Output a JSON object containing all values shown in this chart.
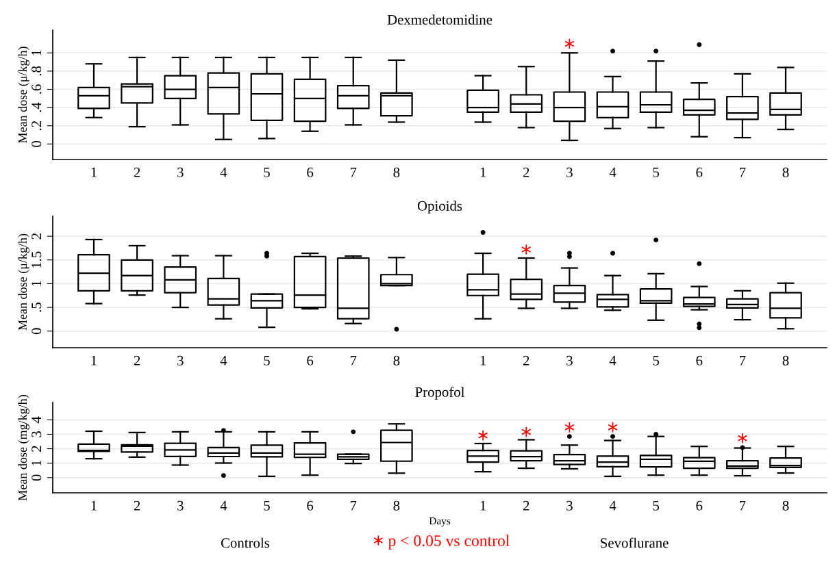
{
  "chart_data": [
    {
      "type": "box",
      "title": "Dexmedetomidine",
      "ylabel": "Mean dose (μ/kg/h)",
      "categories": [
        "1",
        "2",
        "3",
        "4",
        "5",
        "6",
        "7",
        "8",
        null,
        "1",
        "2",
        "3",
        "4",
        "5",
        "6",
        "7",
        "8"
      ],
      "boxes": [
        {
          "low": 0.29,
          "q1": 0.39,
          "median": 0.53,
          "q3": 0.62,
          "high": 0.88
        },
        {
          "low": 0.19,
          "q1": 0.45,
          "median": 0.63,
          "q3": 0.66,
          "high": 0.95
        },
        {
          "low": 0.21,
          "q1": 0.5,
          "median": 0.6,
          "q3": 0.75,
          "high": 0.95
        },
        {
          "low": 0.05,
          "q1": 0.33,
          "median": 0.62,
          "q3": 0.78,
          "high": 0.95
        },
        {
          "low": 0.06,
          "q1": 0.26,
          "median": 0.55,
          "q3": 0.77,
          "high": 0.95
        },
        {
          "low": 0.14,
          "q1": 0.25,
          "median": 0.5,
          "q3": 0.71,
          "high": 0.95
        },
        {
          "low": 0.21,
          "q1": 0.39,
          "median": 0.53,
          "q3": 0.64,
          "high": 0.95
        },
        {
          "low": 0.24,
          "q1": 0.31,
          "median": 0.53,
          "q3": 0.56,
          "high": 0.92
        },
        null,
        {
          "low": 0.24,
          "q1": 0.35,
          "median": 0.4,
          "q3": 0.59,
          "high": 0.75
        },
        {
          "low": 0.18,
          "q1": 0.35,
          "median": 0.44,
          "q3": 0.54,
          "high": 0.85
        },
        {
          "low": 0.04,
          "q1": 0.25,
          "median": 0.4,
          "q3": 0.57,
          "high": 1.0
        },
        {
          "low": 0.17,
          "q1": 0.29,
          "median": 0.41,
          "q3": 0.57,
          "high": 0.74,
          "outliers": [
            1.02
          ]
        },
        {
          "low": 0.18,
          "q1": 0.35,
          "median": 0.43,
          "q3": 0.57,
          "high": 0.91,
          "outliers": [
            1.02
          ]
        },
        {
          "low": 0.08,
          "q1": 0.32,
          "median": 0.37,
          "q3": 0.49,
          "high": 0.67,
          "outliers": [
            1.09
          ]
        },
        {
          "low": 0.07,
          "q1": 0.27,
          "median": 0.34,
          "q3": 0.52,
          "high": 0.77
        },
        {
          "low": 0.16,
          "q1": 0.32,
          "median": 0.38,
          "q3": 0.56,
          "high": 0.84
        }
      ],
      "series": [
        {
          "type": "scatter",
          "color": "#ff0000",
          "marker": "cross",
          "values": [
            null,
            null,
            null,
            null,
            null,
            null,
            null,
            null,
            null,
            null,
            null,
            1.1,
            null,
            null,
            null,
            null,
            null
          ]
        }
      ],
      "ylim": [
        -0.17,
        1.25
      ],
      "yticks": [
        0,
        {
          "value": 0.2,
          "label": ".2"
        },
        {
          "value": 0.4,
          "label": ".4"
        },
        {
          "value": 0.6,
          "label": ".6"
        },
        {
          "value": 0.8,
          "label": ".8"
        },
        1
      ],
      "grid": "y"
    },
    {
      "type": "box",
      "title": "Opioids",
      "ylabel": "Mean dose (μ/kg/h)",
      "categories": [
        "1",
        "2",
        "3",
        "4",
        "5",
        "6",
        "7",
        "8",
        null,
        "1",
        "2",
        "3",
        "4",
        "5",
        "6",
        "7",
        "8"
      ],
      "boxes": [
        {
          "low": 0.58,
          "q1": 0.85,
          "median": 1.22,
          "q3": 1.61,
          "high": 1.93
        },
        {
          "low": 0.76,
          "q1": 0.85,
          "median": 1.17,
          "q3": 1.5,
          "high": 1.8
        },
        {
          "low": 0.5,
          "q1": 0.81,
          "median": 1.08,
          "q3": 1.35,
          "high": 1.59
        },
        {
          "low": 0.26,
          "q1": 0.55,
          "median": 0.68,
          "q3": 1.11,
          "high": 1.59
        },
        {
          "low": 0.08,
          "q1": 0.49,
          "median": 0.64,
          "q3": 0.78,
          "high": 0.78,
          "outliers": [
            1.58,
            1.64
          ]
        },
        {
          "low": 0.47,
          "q1": 0.5,
          "median": 0.76,
          "q3": 1.57,
          "high": 1.64
        },
        {
          "low": 0.16,
          "q1": 0.26,
          "median": 0.48,
          "q3": 1.54,
          "high": 1.58
        },
        {
          "low": 0.96,
          "q1": 0.96,
          "median": 1.0,
          "q3": 1.19,
          "high": 1.55,
          "outliers": [
            0.04
          ]
        },
        null,
        {
          "low": 0.26,
          "q1": 0.75,
          "median": 0.87,
          "q3": 1.2,
          "high": 1.64,
          "outliers": [
            2.08
          ]
        },
        {
          "low": 0.48,
          "q1": 0.67,
          "median": 0.78,
          "q3": 1.09,
          "high": 1.54
        },
        {
          "low": 0.48,
          "q1": 0.61,
          "median": 0.8,
          "q3": 0.96,
          "high": 1.33,
          "outliers": [
            1.57,
            1.64
          ]
        },
        {
          "low": 0.44,
          "q1": 0.51,
          "median": 0.67,
          "q3": 0.77,
          "high": 1.17,
          "outliers": [
            1.64
          ]
        },
        {
          "low": 0.23,
          "q1": 0.59,
          "median": 0.64,
          "q3": 0.89,
          "high": 1.21,
          "outliers": [
            1.92
          ]
        },
        {
          "low": 0.45,
          "q1": 0.52,
          "median": 0.57,
          "q3": 0.71,
          "high": 0.94,
          "outliers": [
            1.42,
            0.15,
            0.07
          ]
        },
        {
          "low": 0.24,
          "q1": 0.49,
          "median": 0.56,
          "q3": 0.68,
          "high": 0.85
        },
        {
          "low": 0.05,
          "q1": 0.28,
          "median": 0.48,
          "q3": 0.81,
          "high": 1.01
        }
      ],
      "series": [
        {
          "type": "scatter",
          "color": "#ff0000",
          "marker": "cross",
          "values": [
            null,
            null,
            null,
            null,
            null,
            null,
            null,
            null,
            null,
            null,
            1.72,
            null,
            null,
            null,
            null,
            null,
            null
          ]
        }
      ],
      "ylim": [
        -0.35,
        2.42
      ],
      "yticks": [
        0,
        {
          "value": 0.5,
          "label": ".5"
        },
        1,
        1.5,
        2
      ],
      "grid": "y"
    },
    {
      "type": "box",
      "title": "Propofol",
      "ylabel": "Mean dose (mg/kg/h)",
      "xlabel": "Days",
      "categories": [
        "1",
        "2",
        "3",
        "4",
        "5",
        "6",
        "7",
        "8",
        null,
        "1",
        "2",
        "3",
        "4",
        "5",
        "6",
        "7",
        "8"
      ],
      "boxes": [
        {
          "low": 1.31,
          "q1": 1.82,
          "median": 1.88,
          "q3": 2.32,
          "high": 3.21
        },
        {
          "low": 1.42,
          "q1": 1.77,
          "median": 2.18,
          "q3": 2.27,
          "high": 3.12
        },
        {
          "low": 0.87,
          "q1": 1.47,
          "median": 1.92,
          "q3": 2.38,
          "high": 3.17
        },
        {
          "low": 1.01,
          "q1": 1.46,
          "median": 1.7,
          "q3": 2.08,
          "high": 3.17,
          "outliers": [
            3.26,
            0.15
          ]
        },
        {
          "low": 0.09,
          "q1": 1.44,
          "median": 1.7,
          "q3": 2.25,
          "high": 3.17
        },
        {
          "low": 0.17,
          "q1": 1.4,
          "median": 1.62,
          "q3": 2.4,
          "high": 3.17
        },
        {
          "low": 0.98,
          "q1": 1.27,
          "median": 1.44,
          "q3": 1.62,
          "high": 1.62,
          "outliers": [
            3.17
          ]
        },
        {
          "low": 0.31,
          "q1": 1.14,
          "median": 2.43,
          "q3": 3.28,
          "high": 3.72
        },
        null,
        {
          "low": 0.41,
          "q1": 1.08,
          "median": 1.49,
          "q3": 1.88,
          "high": 2.36
        },
        {
          "low": 0.65,
          "q1": 1.17,
          "median": 1.45,
          "q3": 1.86,
          "high": 2.62
        },
        {
          "low": 0.61,
          "q1": 0.91,
          "median": 1.17,
          "q3": 1.6,
          "high": 2.25,
          "outliers": [
            2.85
          ]
        },
        {
          "low": 0.09,
          "q1": 0.76,
          "median": 1.08,
          "q3": 1.49,
          "high": 2.57,
          "outliers": [
            2.85
          ]
        },
        {
          "low": 0.17,
          "q1": 0.74,
          "median": 1.27,
          "q3": 1.54,
          "high": 2.85,
          "outliers": [
            3.0
          ]
        },
        {
          "low": 0.17,
          "q1": 0.65,
          "median": 1.13,
          "q3": 1.38,
          "high": 2.16
        },
        {
          "low": 0.13,
          "q1": 0.65,
          "median": 0.8,
          "q3": 1.17,
          "high": 2.05,
          "outliers": [
            2.08
          ]
        },
        {
          "low": 0.32,
          "q1": 0.71,
          "median": 0.84,
          "q3": 1.36,
          "high": 2.16
        }
      ],
      "series": [
        {
          "type": "scatter",
          "name": "p < 0.05 vs control",
          "color": "#ff0000",
          "marker": "cross",
          "values": [
            null,
            null,
            null,
            null,
            null,
            null,
            null,
            null,
            null,
            2.92,
            3.16,
            3.48,
            3.48,
            null,
            null,
            2.73,
            null
          ]
        }
      ],
      "ylim": [
        -1.05,
        5.2
      ],
      "yticks": [
        0,
        1,
        2,
        3,
        4
      ],
      "grid": "y",
      "legend": "bottom",
      "annotations": [
        "Controls",
        "Sevoflurane"
      ]
    }
  ]
}
